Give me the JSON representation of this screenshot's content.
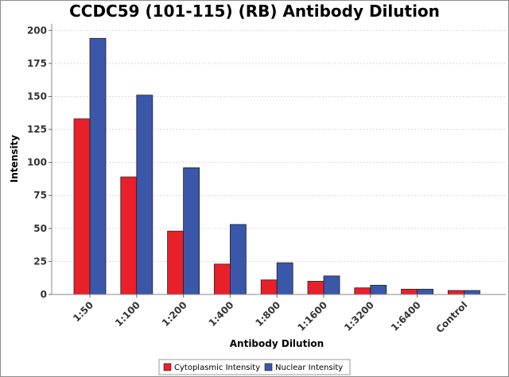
{
  "chart_data": {
    "type": "bar",
    "title": "CCDC59 (101-115) (RB) Antibody Dilution",
    "xlabel": "Antibody Dilution",
    "ylabel": "Intensity",
    "ylim": [
      0,
      205
    ],
    "yticks": [
      0,
      25,
      50,
      75,
      100,
      125,
      150,
      175,
      200
    ],
    "grid": true,
    "legend_position": "bottom-center",
    "categories": [
      "1:50",
      "1:100",
      "1:200",
      "1:400",
      "1:800",
      "1:1600",
      "1:3200",
      "1:6400",
      "Control"
    ],
    "series": [
      {
        "name": "Cytoplasmic Intensity",
        "color": "#e8202a",
        "values": [
          133,
          89,
          48,
          23,
          11,
          10,
          5,
          4,
          3
        ]
      },
      {
        "name": "Nuclear Intensity",
        "color": "#3a57a9",
        "values": [
          194,
          151,
          96,
          53,
          24,
          14,
          7,
          4,
          3
        ]
      }
    ]
  }
}
